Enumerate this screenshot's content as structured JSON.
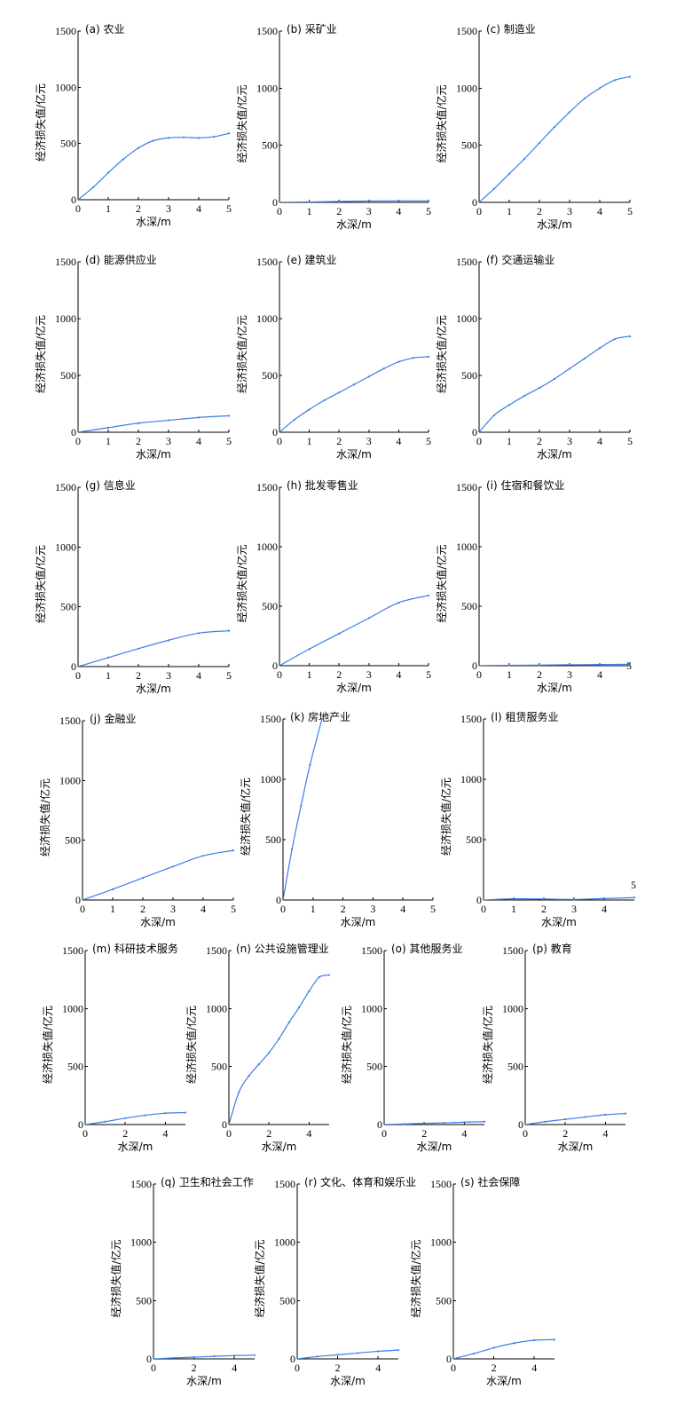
{
  "chart_data": [
    {
      "panel": "a",
      "type": "line",
      "title": "(a) 农业",
      "xlabel": "水深/m",
      "ylabel": "经济损失值/亿元",
      "xlim": [
        0,
        5
      ],
      "ylim": [
        0,
        1500
      ],
      "xticks": [
        0,
        1,
        2,
        3,
        4,
        5
      ],
      "yticks": [
        0,
        500,
        1000,
        1500
      ],
      "x": [
        0,
        0.5,
        1,
        1.5,
        2,
        2.5,
        3,
        3.5,
        4,
        4.5,
        5
      ],
      "values": [
        0,
        110,
        240,
        360,
        460,
        525,
        550,
        555,
        550,
        560,
        590
      ]
    },
    {
      "panel": "b",
      "type": "line",
      "title": "(b) 采矿业",
      "xlabel": "水深/m",
      "ylabel": "经济损失值/亿元",
      "xlim": [
        0,
        5
      ],
      "ylim": [
        0,
        1500
      ],
      "xticks": [
        0,
        1,
        2,
        3,
        4,
        5
      ],
      "yticks": [
        0,
        500,
        1000,
        1500
      ],
      "x": [
        0,
        1,
        2,
        3,
        4,
        5
      ],
      "values": [
        0,
        3,
        8,
        12,
        13,
        13
      ]
    },
    {
      "panel": "c",
      "type": "line",
      "title": "(c) 制造业",
      "xlabel": "水深/m",
      "ylabel": "经济损失值/亿元",
      "xlim": [
        0,
        5
      ],
      "ylim": [
        0,
        1500
      ],
      "xticks": [
        0,
        1,
        2,
        3,
        4,
        5
      ],
      "yticks": [
        0,
        500,
        1000,
        1500
      ],
      "x": [
        0,
        0.5,
        1,
        1.5,
        2,
        2.5,
        3,
        3.5,
        4,
        4.5,
        5
      ],
      "values": [
        0,
        120,
        250,
        380,
        520,
        660,
        790,
        910,
        1000,
        1070,
        1100
      ]
    },
    {
      "panel": "d",
      "type": "line",
      "title": "(d) 能源供应业",
      "xlabel": "水深/m",
      "ylabel": "经济损失值/亿元",
      "xlim": [
        0,
        5
      ],
      "ylim": [
        0,
        1500
      ],
      "xticks": [
        0,
        1,
        2,
        3,
        4,
        5
      ],
      "yticks": [
        0,
        500,
        1000,
        1500
      ],
      "x": [
        0,
        1,
        2,
        3,
        4,
        5
      ],
      "values": [
        0,
        40,
        80,
        105,
        130,
        145
      ]
    },
    {
      "panel": "e",
      "type": "line",
      "title": "(e) 建筑业",
      "xlabel": "水深/m",
      "ylabel": "经济损失值/亿元",
      "xlim": [
        0,
        5
      ],
      "ylim": [
        0,
        1500
      ],
      "xticks": [
        0,
        1,
        2,
        3,
        4,
        5
      ],
      "yticks": [
        0,
        500,
        1000,
        1500
      ],
      "x": [
        0,
        0.5,
        1,
        1.5,
        2,
        2.5,
        3,
        3.5,
        4,
        4.5,
        5
      ],
      "values": [
        0,
        110,
        200,
        280,
        350,
        420,
        490,
        560,
        620,
        655,
        665
      ]
    },
    {
      "panel": "f",
      "type": "line",
      "title": "(f) 交通运输业",
      "xlabel": "水深/m",
      "ylabel": "经济损失值/亿元",
      "xlim": [
        0,
        5
      ],
      "ylim": [
        0,
        1500
      ],
      "xticks": [
        0,
        1,
        2,
        3,
        4,
        5
      ],
      "yticks": [
        0,
        500,
        1000,
        1500
      ],
      "x": [
        0,
        0.5,
        1,
        1.5,
        2,
        2.5,
        3,
        3.5,
        4,
        4.5,
        5
      ],
      "values": [
        0,
        150,
        240,
        320,
        390,
        470,
        560,
        650,
        740,
        820,
        845
      ]
    },
    {
      "panel": "g",
      "type": "line",
      "title": "(g) 信息业",
      "xlabel": "水深/m",
      "ylabel": "经济损失值/亿元",
      "xlim": [
        0,
        5
      ],
      "ylim": [
        0,
        1500
      ],
      "xticks": [
        0,
        1,
        2,
        3,
        4,
        5
      ],
      "yticks": [
        0,
        500,
        1000,
        1500
      ],
      "x": [
        0,
        1,
        2,
        3,
        4,
        5
      ],
      "values": [
        0,
        75,
        150,
        220,
        280,
        300
      ]
    },
    {
      "panel": "h",
      "type": "line",
      "title": "(h) 批发零售业",
      "xlabel": "水深/m",
      "ylabel": "经济损失值/亿元",
      "xlim": [
        0,
        5
      ],
      "ylim": [
        0,
        1500
      ],
      "xticks": [
        0,
        1,
        2,
        3,
        4,
        5
      ],
      "yticks": [
        0,
        500,
        1000,
        1500
      ],
      "x": [
        0,
        1,
        2,
        3,
        4,
        5
      ],
      "values": [
        0,
        140,
        270,
        400,
        530,
        590
      ]
    },
    {
      "panel": "i",
      "type": "line",
      "title": "(i) 住宿和餐饮业",
      "xlabel": "水深/m",
      "ylabel": "经济损失值/亿元",
      "xlim": [
        0,
        5
      ],
      "ylim": [
        0,
        1500
      ],
      "xticks": [
        0,
        1,
        2,
        3,
        4
      ],
      "xtick_end_label": "5",
      "yticks": [
        0,
        500,
        1000,
        1500
      ],
      "x": [
        0,
        1,
        2,
        3,
        4,
        5
      ],
      "values": [
        0,
        3,
        5,
        8,
        10,
        12
      ]
    },
    {
      "panel": "j",
      "type": "line",
      "title": "(j) 金融业",
      "xlabel": "水深/m",
      "ylabel": "经济损失值/亿元",
      "xlim": [
        0,
        5
      ],
      "ylim": [
        0,
        1500
      ],
      "xticks": [
        0,
        1,
        2,
        3,
        4,
        5
      ],
      "yticks": [
        0,
        500,
        1000,
        1500
      ],
      "x": [
        0,
        1,
        2,
        3,
        4,
        5
      ],
      "values": [
        0,
        90,
        185,
        280,
        370,
        415
      ]
    },
    {
      "panel": "k",
      "type": "line",
      "title": "(k) 房地产业",
      "xlabel": "水深/m",
      "ylabel": "经济损失值/亿元",
      "xlim": [
        0,
        5
      ],
      "ylim": [
        0,
        1500
      ],
      "xticks": [
        0,
        1,
        2,
        3,
        4,
        5
      ],
      "yticks": [
        0,
        500,
        1000,
        1500
      ],
      "x": [
        0,
        0.3,
        0.6,
        0.9,
        1.3
      ],
      "values": [
        0,
        420,
        780,
        1120,
        1500
      ]
    },
    {
      "panel": "l",
      "type": "line",
      "title": "(l) 租赁服务业",
      "xlabel": "水深/m",
      "ylabel": "经济损失值/亿元",
      "xlim": [
        0,
        5
      ],
      "ylim": [
        0,
        1500
      ],
      "xticks": [
        0,
        1,
        2,
        3,
        4
      ],
      "xtick_end_label": "5",
      "yticks": [
        0,
        500,
        1000,
        1500
      ],
      "x": [
        0,
        1,
        2,
        3,
        4,
        5
      ],
      "values": [
        0,
        10,
        8,
        5,
        12,
        20
      ]
    },
    {
      "panel": "m",
      "type": "line",
      "title": "(m) 科研技术服务",
      "xlabel": "水深/m",
      "ylabel": "经济损失值/亿元",
      "xlim": [
        0,
        5
      ],
      "ylim": [
        0,
        1500
      ],
      "xticks": [
        0,
        2,
        4
      ],
      "yticks": [
        0,
        500,
        1000,
        1500
      ],
      "x": [
        0,
        1,
        2,
        3,
        4,
        5
      ],
      "values": [
        0,
        25,
        55,
        80,
        98,
        103
      ]
    },
    {
      "panel": "n",
      "type": "line",
      "title": "(n) 公共设施管理业",
      "xlabel": "水深/m",
      "ylabel": "经济损失值/亿元",
      "xlim": [
        0,
        5
      ],
      "ylim": [
        0,
        1500
      ],
      "xticks": [
        0,
        2,
        4
      ],
      "yticks": [
        0,
        500,
        1000,
        1500
      ],
      "x": [
        0,
        0.5,
        1,
        1.5,
        2,
        2.5,
        3,
        3.5,
        4,
        4.5,
        5
      ],
      "values": [
        0,
        280,
        420,
        520,
        620,
        740,
        880,
        1010,
        1150,
        1270,
        1290
      ]
    },
    {
      "panel": "o",
      "type": "line",
      "title": "(o) 其他服务业",
      "xlabel": "水深/m",
      "ylabel": "经济损失值/亿元",
      "xlim": [
        0,
        5
      ],
      "ylim": [
        0,
        1500
      ],
      "xticks": [
        0,
        2,
        4
      ],
      "yticks": [
        0,
        500,
        1000,
        1500
      ],
      "x": [
        0,
        1,
        2,
        3,
        4,
        5
      ],
      "values": [
        0,
        5,
        10,
        15,
        20,
        25
      ]
    },
    {
      "panel": "p",
      "type": "line",
      "title": "(p) 教育",
      "xlabel": "水深/m",
      "ylabel": "经济损失值/亿元",
      "xlim": [
        0,
        5
      ],
      "ylim": [
        0,
        1500
      ],
      "xticks": [
        0,
        2,
        4
      ],
      "yticks": [
        0,
        500,
        1000,
        1500
      ],
      "x": [
        0,
        1,
        2,
        3,
        4,
        5
      ],
      "values": [
        0,
        25,
        45,
        65,
        85,
        95
      ]
    },
    {
      "panel": "q",
      "type": "line",
      "title": "(q) 卫生和社会工作",
      "xlabel": "水深/m",
      "ylabel": "经济损失值/亿元",
      "xlim": [
        0,
        5
      ],
      "ylim": [
        0,
        1500
      ],
      "xticks": [
        0,
        2,
        4
      ],
      "yticks": [
        0,
        500,
        1000,
        1500
      ],
      "x": [
        0,
        1,
        2,
        3,
        4,
        5
      ],
      "values": [
        0,
        8,
        15,
        22,
        28,
        32
      ]
    },
    {
      "panel": "r",
      "type": "line",
      "title": "(r) 文化、体育和娱乐业",
      "xlabel": "水深/m",
      "ylabel": "经济损失值/亿元",
      "xlim": [
        0,
        5
      ],
      "ylim": [
        0,
        1500
      ],
      "xticks": [
        0,
        2,
        4
      ],
      "yticks": [
        0,
        500,
        1000,
        1500
      ],
      "x": [
        0,
        1,
        2,
        3,
        4,
        5
      ],
      "values": [
        0,
        20,
        35,
        50,
        65,
        75
      ]
    },
    {
      "panel": "s",
      "type": "line",
      "title": "(s) 社会保障",
      "xlabel": "水深/m",
      "ylabel": "经济损失值/亿元",
      "xlim": [
        0,
        5
      ],
      "ylim": [
        0,
        1500
      ],
      "xticks": [
        0,
        2,
        4
      ],
      "yticks": [
        0,
        500,
        1000,
        1500
      ],
      "x": [
        0,
        1,
        2,
        3,
        4,
        5
      ],
      "values": [
        0,
        45,
        95,
        135,
        160,
        165
      ]
    }
  ]
}
